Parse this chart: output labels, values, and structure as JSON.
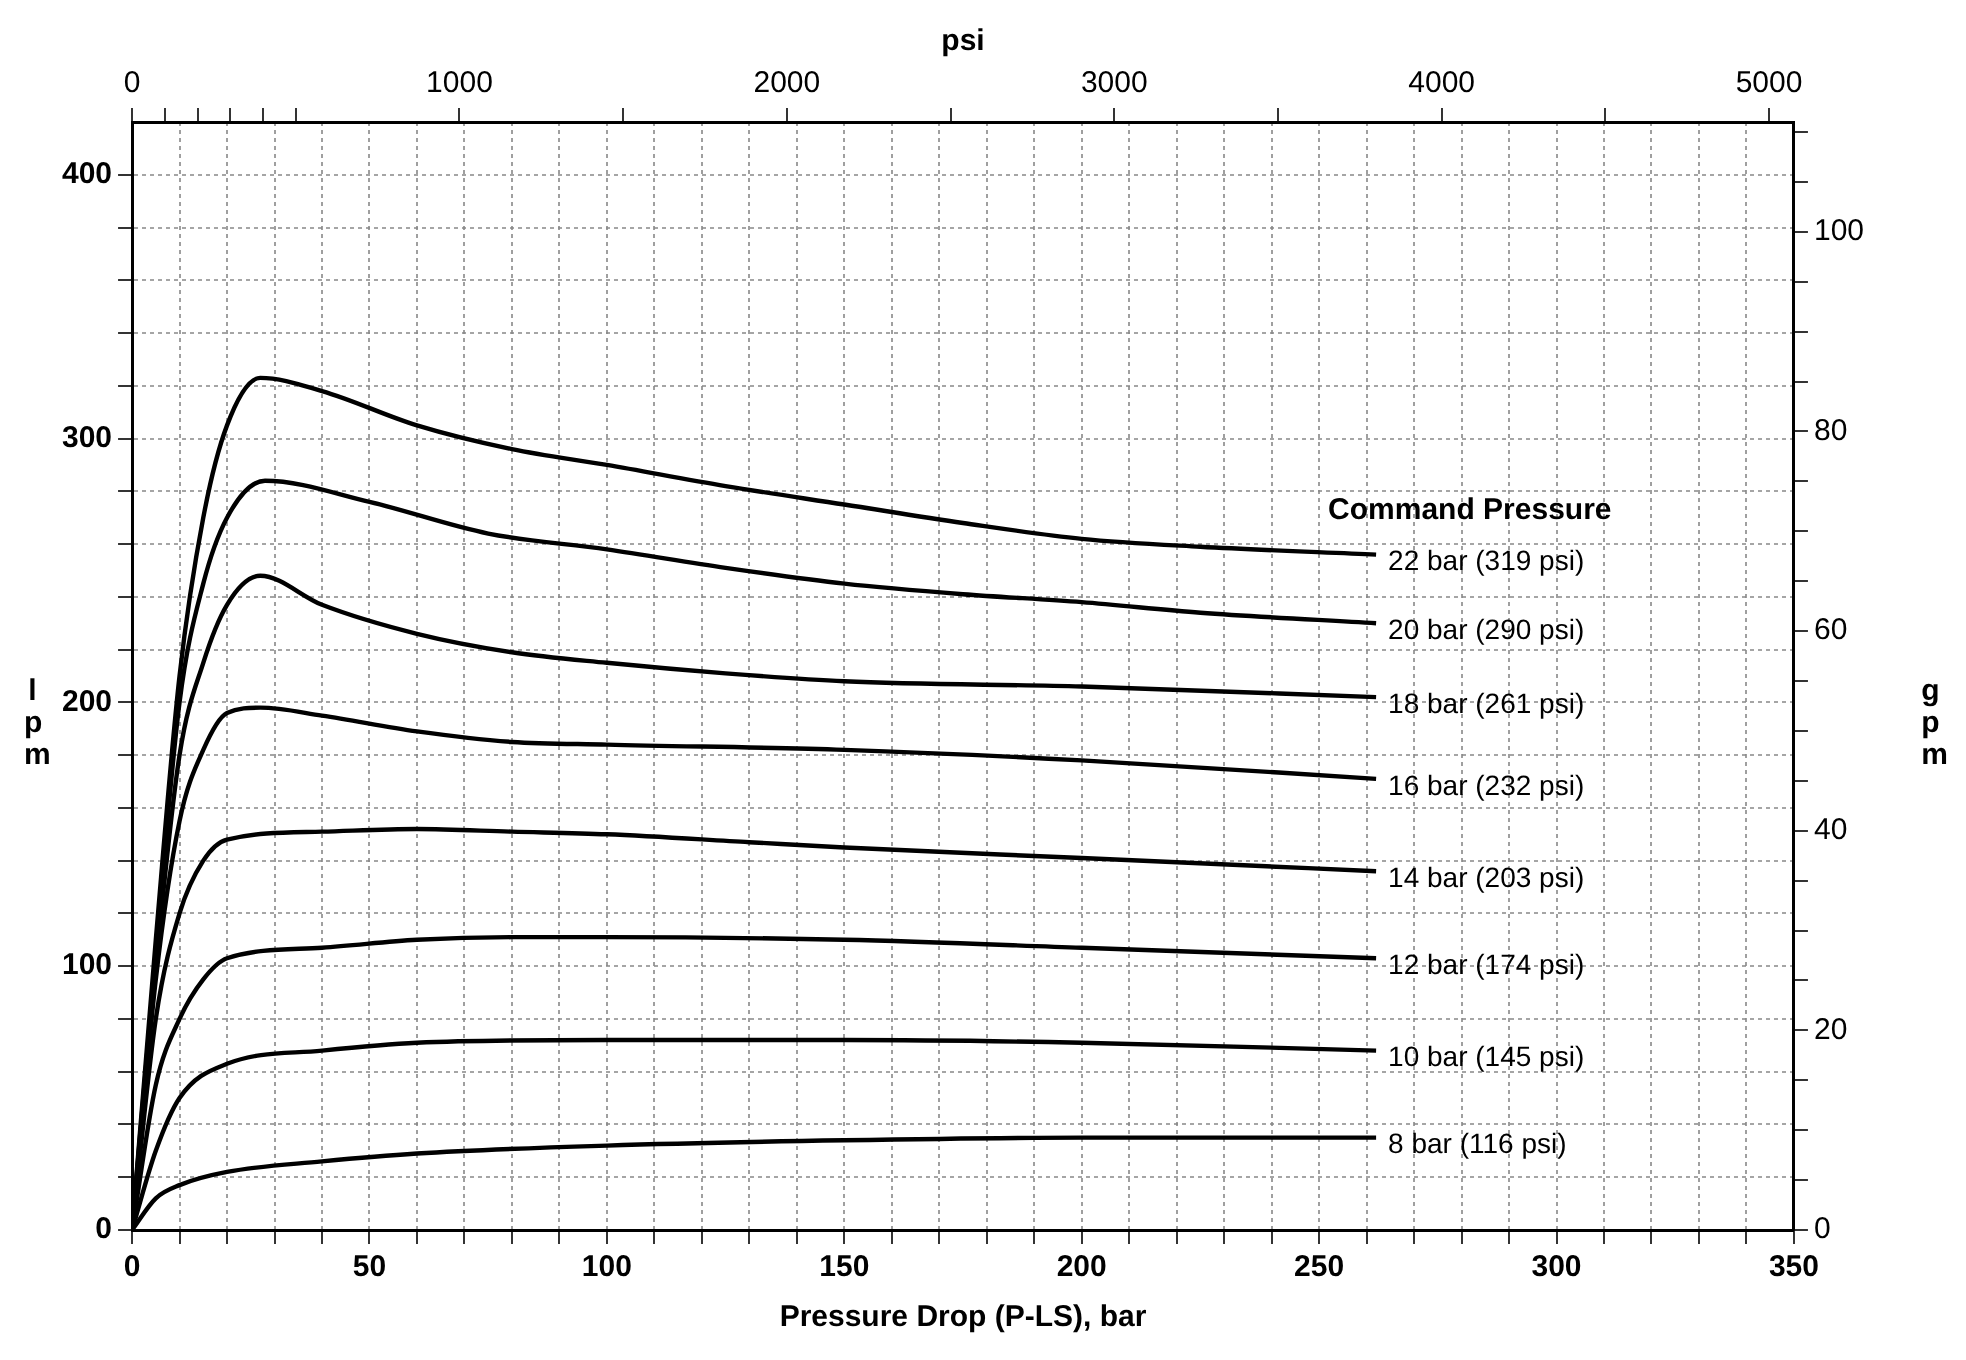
{
  "chart_data": {
    "type": "line",
    "xlabel": "Pressure Drop (P-LS), bar",
    "ylabel": "lpm",
    "y2label": "gpm",
    "x2label": "psi",
    "legend_title": "Command Pressure",
    "legend": false,
    "grid": true,
    "marker": "none",
    "line_style": "solid",
    "xlim": [
      0,
      350
    ],
    "xticks": [
      0,
      {
        "value": 10,
        "label": null
      },
      {
        "value": 20,
        "label": null
      },
      {
        "value": 30,
        "label": null
      },
      {
        "value": 40,
        "label": null
      },
      50,
      {
        "value": 60,
        "label": null
      },
      {
        "value": 70,
        "label": null
      },
      {
        "value": 80,
        "label": null
      },
      {
        "value": 90,
        "label": null
      },
      100,
      {
        "value": 110,
        "label": null
      },
      {
        "value": 120,
        "label": null
      },
      {
        "value": 130,
        "label": null
      },
      {
        "value": 140,
        "label": null
      },
      150,
      {
        "value": 160,
        "label": null
      },
      {
        "value": 170,
        "label": null
      },
      {
        "value": 180,
        "label": null
      },
      {
        "value": 190,
        "label": null
      },
      200,
      {
        "value": 210,
        "label": null
      },
      {
        "value": 220,
        "label": null
      },
      {
        "value": 230,
        "label": null
      },
      {
        "value": 240,
        "label": null
      },
      250,
      {
        "value": 260,
        "label": null
      },
      {
        "value": 270,
        "label": null
      },
      {
        "value": 280,
        "label": null
      },
      {
        "value": 290,
        "label": null
      },
      300,
      {
        "value": 310,
        "label": null
      },
      {
        "value": 320,
        "label": null
      },
      {
        "value": 330,
        "label": null
      },
      {
        "value": 340,
        "label": null
      },
      350
    ],
    "x2lim": [
      0,
      5076
    ],
    "x2ticks": [
      0,
      {
        "value": 100,
        "label": null
      },
      {
        "value": 200,
        "label": null
      },
      {
        "value": 300,
        "label": null
      },
      {
        "value": 400,
        "label": null
      },
      {
        "value": 500,
        "label": null
      },
      1000,
      {
        "value": 1500,
        "label": null
      },
      2000,
      {
        "value": 2500,
        "label": null
      },
      3000,
      {
        "value": 3500,
        "label": null
      },
      4000,
      {
        "value": 4500,
        "label": null
      },
      5000
    ],
    "ylim": [
      0,
      420
    ],
    "yticks": [
      0,
      {
        "value": 20,
        "label": null
      },
      {
        "value": 40,
        "label": null
      },
      {
        "value": 60,
        "label": null
      },
      {
        "value": 80,
        "label": null
      },
      100,
      {
        "value": 120,
        "label": null
      },
      {
        "value": 140,
        "label": null
      },
      {
        "value": 160,
        "label": null
      },
      {
        "value": 180,
        "label": null
      },
      200,
      {
        "value": 220,
        "label": null
      },
      {
        "value": 240,
        "label": null
      },
      {
        "value": 260,
        "label": null
      },
      {
        "value": 280,
        "label": null
      },
      300,
      {
        "value": 320,
        "label": null
      },
      {
        "value": 340,
        "label": null
      },
      {
        "value": 360,
        "label": null
      },
      {
        "value": 380,
        "label": null
      },
      400
    ],
    "y2lim": [
      0,
      111
    ],
    "y2ticks": [
      0,
      {
        "value": 5,
        "label": null
      },
      {
        "value": 10,
        "label": null
      },
      {
        "value": 15,
        "label": null
      },
      20,
      {
        "value": 25,
        "label": null
      },
      {
        "value": 30,
        "label": null
      },
      {
        "value": 35,
        "label": null
      },
      40,
      {
        "value": 45,
        "label": null
      },
      {
        "value": 50,
        "label": null
      },
      {
        "value": 55,
        "label": null
      },
      60,
      {
        "value": 65,
        "label": null
      },
      {
        "value": 70,
        "label": null
      },
      {
        "value": 75,
        "label": null
      },
      80,
      {
        "value": 85,
        "label": null
      },
      {
        "value": 90,
        "label": null
      },
      {
        "value": 95,
        "label": null
      },
      100,
      {
        "value": 105,
        "label": null
      },
      {
        "value": 110,
        "label": null
      }
    ],
    "series": [
      {
        "name": "22 bar (319 psi)",
        "color": "#000000",
        "x": [
          0,
          5,
          10,
          15,
          20,
          27,
          40,
          60,
          80,
          100,
          125,
          150,
          175,
          200,
          225,
          262
        ],
        "values": [
          0,
          110,
          210,
          270,
          305,
          323,
          318,
          305,
          296,
          290,
          282,
          275,
          268,
          262,
          259,
          256
        ]
      },
      {
        "name": "20 bar (290 psi)",
        "color": "#000000",
        "x": [
          0,
          5,
          10,
          15,
          20,
          28,
          50,
          75,
          100,
          125,
          150,
          175,
          200,
          225,
          262
        ],
        "values": [
          0,
          105,
          200,
          245,
          270,
          284,
          276,
          264,
          258,
          251,
          245,
          241,
          238,
          234,
          230
        ]
      },
      {
        "name": "18 bar (261 psi)",
        "color": "#000000",
        "x": [
          0,
          5,
          10,
          15,
          20,
          27,
          40,
          60,
          80,
          100,
          125,
          150,
          200,
          262
        ],
        "values": [
          0,
          100,
          180,
          215,
          237,
          248,
          237,
          226,
          219,
          215,
          211,
          208,
          206,
          202
        ]
      },
      {
        "name": "16 bar (232 psi)",
        "color": "#000000",
        "x": [
          0,
          5,
          10,
          15,
          20,
          27,
          40,
          60,
          80,
          100,
          150,
          200,
          262
        ],
        "values": [
          0,
          95,
          155,
          182,
          196,
          198,
          195,
          189,
          185,
          184,
          182,
          178,
          171
        ]
      },
      {
        "name": "14 bar (203 psi)",
        "color": "#000000",
        "x": [
          0,
          5,
          10,
          15,
          20,
          40,
          60,
          80,
          100,
          130,
          150,
          200,
          262
        ],
        "values": [
          0,
          80,
          120,
          140,
          148,
          151,
          152,
          151,
          150,
          147,
          145,
          141,
          136
        ]
      },
      {
        "name": "12 bar (174 psi)",
        "color": "#000000",
        "x": [
          0,
          5,
          10,
          15,
          20,
          40,
          60,
          80,
          100,
          150,
          200,
          262
        ],
        "values": [
          0,
          55,
          80,
          95,
          103,
          107,
          110,
          111,
          111,
          110,
          107,
          103
        ]
      },
      {
        "name": "10 bar (145 psi)",
        "color": "#000000",
        "x": [
          0,
          5,
          10,
          20,
          40,
          60,
          100,
          150,
          200,
          262
        ],
        "values": [
          0,
          30,
          50,
          63,
          68,
          71,
          72,
          72,
          71,
          68
        ]
      },
      {
        "name": "8 bar (116 psi)",
        "color": "#000000",
        "x": [
          0,
          5,
          10,
          20,
          40,
          60,
          100,
          150,
          200,
          262
        ],
        "values": [
          0,
          12,
          17,
          22,
          26,
          29,
          32,
          34,
          35,
          35
        ]
      }
    ]
  }
}
